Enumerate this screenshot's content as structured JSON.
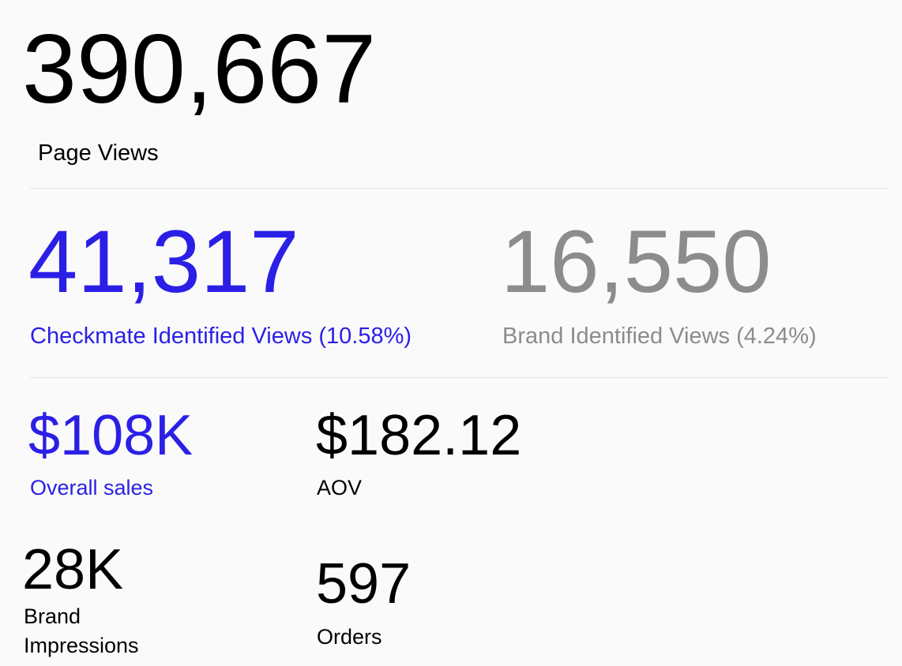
{
  "page_views": {
    "value": "390,667",
    "label": "Page Views"
  },
  "identified": [
    {
      "value": "41,317",
      "label": "Checkmate Identified Views (10.58%)"
    },
    {
      "value": "16,550",
      "label": "Brand Identified Views (4.24%)"
    }
  ],
  "stats": [
    {
      "value": "$108K",
      "label": "Overall sales"
    },
    {
      "value": "$182.12",
      "label": "AOV"
    },
    {
      "value": "28K",
      "label": "Brand Impressions"
    },
    {
      "value": "597",
      "label": "Orders"
    }
  ]
}
